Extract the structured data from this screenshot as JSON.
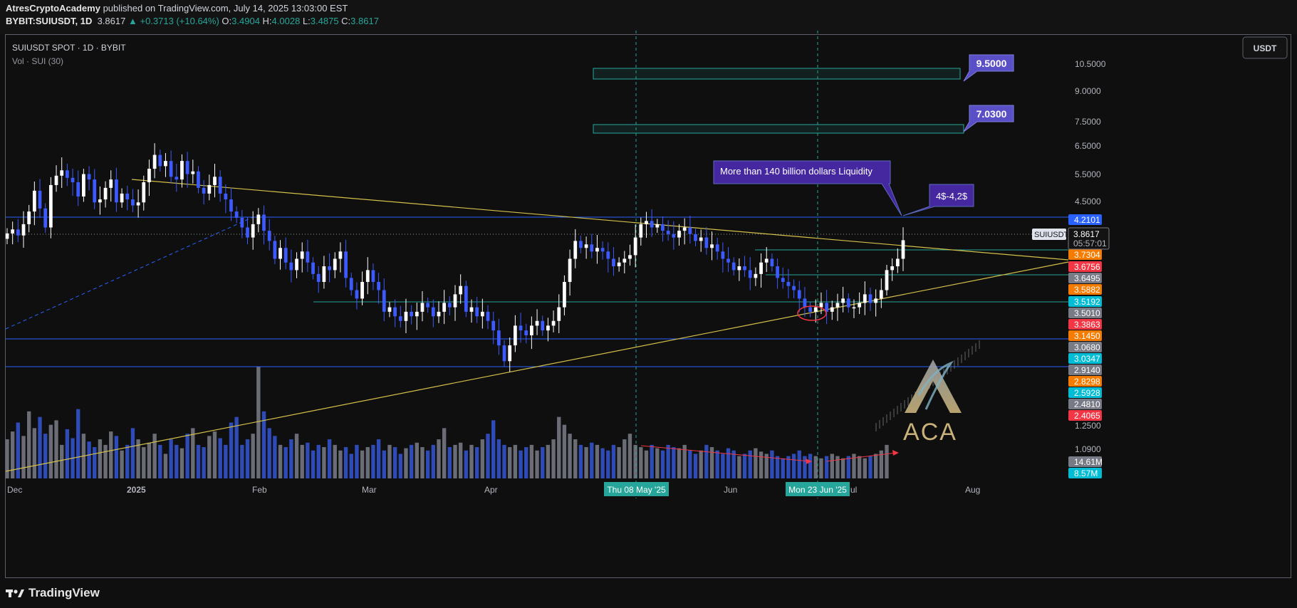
{
  "header": {
    "author": "AtresCryptoAcademy",
    "published": "published on TradingView.com, July 14, 2025 13:03:00 EST",
    "symbol_line": "BYBIT:SUIUSDT, 1D",
    "price": "3.8617",
    "change": "+0.3713 (+10.64%)",
    "o_label": "O:",
    "o": "3.4904",
    "h_label": "H:",
    "h": "4.0028",
    "l_label": "L:",
    "l": "3.4875",
    "c_label": "C:",
    "c": "3.8617"
  },
  "chart_info": {
    "title": "SUIUSDT SPOT · 1D · BYBIT",
    "vol_label": "Vol · SUI (30)",
    "currency_button": "USDT"
  },
  "footer": {
    "brand": "TradingView"
  },
  "colors": {
    "bg": "#0f0f0f",
    "up": "#ffffff",
    "down": "#3d5afe",
    "trendline": "#d4c04a",
    "zone": "#26a69a",
    "callout": "#4527a0",
    "level": "#2962ff"
  },
  "chart_data": {
    "type": "candlestick",
    "symbol": "SUIUSDT",
    "timeframe": "1D",
    "y_scale": "log",
    "price_axis_ticks": [
      "10.5000",
      "9.0000",
      "7.5000",
      "6.5000",
      "5.5000",
      "4.5000",
      "1.2500",
      "1.0900"
    ],
    "price_axis_badges": [
      {
        "value": "4.2101",
        "color": "#2962ff"
      },
      {
        "value": "3.7304",
        "color": "#f57c00"
      },
      {
        "value": "3.6756",
        "color": "#f23645"
      },
      {
        "value": "3.6495",
        "color": "#787b86"
      },
      {
        "value": "3.5882",
        "color": "#f57c00"
      },
      {
        "value": "3.5192",
        "color": "#00bcd4"
      },
      {
        "value": "3.5010",
        "color": "#787b86"
      },
      {
        "value": "3.3863",
        "color": "#f23645"
      },
      {
        "value": "3.1450",
        "color": "#f57c00"
      },
      {
        "value": "3.0680",
        "color": "#787b86"
      },
      {
        "value": "3.0347",
        "color": "#00bcd4"
      },
      {
        "value": "2.9140",
        "color": "#787b86"
      },
      {
        "value": "2.8298",
        "color": "#f57c00"
      },
      {
        "value": "2.5928",
        "color": "#00bcd4"
      },
      {
        "value": "2.4810",
        "color": "#787b86"
      },
      {
        "value": "2.4065",
        "color": "#f23645"
      },
      {
        "value": "14.61M",
        "color": "#787b86"
      },
      {
        "value": "8.57M",
        "color": "#00bcd4"
      }
    ],
    "last_price": {
      "symbol": "SUIUSDT",
      "price": "3.8617",
      "countdown": "05:57:01"
    },
    "x_axis_labels": [
      "Dec",
      "2025",
      "Feb",
      "Mar",
      "Apr",
      "Jun",
      "Jul",
      "Aug"
    ],
    "x_axis_highlights": [
      "Thu 08 May '25",
      "Mon 23 Jun '25"
    ],
    "price_points": [
      3.96,
      4.02,
      3.93,
      4.1,
      4.3,
      4.65,
      4.35,
      4.05,
      4.75,
      4.92,
      5.02,
      4.88,
      4.8,
      4.55,
      4.95,
      4.85,
      4.45,
      4.5,
      4.7,
      4.85,
      4.45,
      4.6,
      4.5,
      4.4,
      4.45,
      4.8,
      5.05,
      5.32,
      5.1,
      5.2,
      4.9,
      4.85,
      5.2,
      4.95,
      5.0,
      4.7,
      4.6,
      4.75,
      4.9,
      4.6,
      4.5,
      4.3,
      4.2,
      4.05,
      3.9,
      4.1,
      4.25,
      4.0,
      3.85,
      3.6,
      3.75,
      3.55,
      3.45,
      3.6,
      3.7,
      3.55,
      3.4,
      3.3,
      3.5,
      3.45,
      3.6,
      3.7,
      3.35,
      3.2,
      3.1,
      3.3,
      3.45,
      3.3,
      3.2,
      2.95,
      3.0,
      2.9,
      2.85,
      2.95,
      2.9,
      2.95,
      3.05,
      3.0,
      2.9,
      2.95,
      3.05,
      3.0,
      3.15,
      3.25,
      2.95,
      3.0,
      2.9,
      2.95,
      2.85,
      2.75,
      2.6,
      2.45,
      2.6,
      2.8,
      2.75,
      2.7,
      2.8,
      2.85,
      2.75,
      2.8,
      2.85,
      3.0,
      3.3,
      3.6,
      3.85,
      3.75,
      3.8,
      3.7,
      3.75,
      3.7,
      3.6,
      3.5,
      3.55,
      3.6,
      3.65,
      3.9,
      4.1,
      4.15,
      4.05,
      4.1,
      4.0,
      3.95,
      3.9,
      4.0,
      4.05,
      3.95,
      3.85,
      3.9,
      3.75,
      3.8,
      3.7,
      3.6,
      3.55,
      3.45,
      3.5,
      3.45,
      3.35,
      3.4,
      3.55,
      3.6,
      3.5,
      3.35,
      3.3,
      3.25,
      3.2,
      3.1,
      3.0,
      2.95,
      3.0,
      3.05,
      2.95,
      3.0,
      3.05,
      3.1,
      3.0,
      3.0,
      3.05,
      3.15,
      3.05,
      3.1,
      3.2,
      3.45,
      3.5,
      3.6,
      3.86
    ],
    "volume_points": [
      0.35,
      0.42,
      0.5,
      0.38,
      0.6,
      0.45,
      0.55,
      0.4,
      0.48,
      0.52,
      0.3,
      0.44,
      0.36,
      0.62,
      0.4,
      0.33,
      0.28,
      0.35,
      0.3,
      0.42,
      0.38,
      0.25,
      0.3,
      0.45,
      0.35,
      0.28,
      0.32,
      0.4,
      0.3,
      0.22,
      0.35,
      0.3,
      0.27,
      0.4,
      0.45,
      0.3,
      0.28,
      0.38,
      0.42,
      0.36,
      0.3,
      0.5,
      0.55,
      0.3,
      0.35,
      0.4,
      1.0,
      0.6,
      0.45,
      0.38,
      0.3,
      0.28,
      0.35,
      0.4,
      0.3,
      0.32,
      0.25,
      0.3,
      0.28,
      0.35,
      0.3,
      0.25,
      0.28,
      0.22,
      0.3,
      0.25,
      0.28,
      0.3,
      0.35,
      0.25,
      0.3,
      0.28,
      0.22,
      0.27,
      0.3,
      0.32,
      0.28,
      0.25,
      0.3,
      0.35,
      0.45,
      0.28,
      0.3,
      0.32,
      0.25,
      0.3,
      0.28,
      0.35,
      0.4,
      0.52,
      0.35,
      0.3,
      0.28,
      0.3,
      0.25,
      0.28,
      0.3,
      0.25,
      0.28,
      0.3,
      0.35,
      0.55,
      0.48,
      0.4,
      0.35,
      0.3,
      0.28,
      0.32,
      0.3,
      0.27,
      0.25,
      0.3,
      0.28,
      0.35,
      0.4,
      0.3,
      0.28,
      0.25,
      0.3,
      0.27,
      0.25,
      0.3,
      0.28,
      0.27,
      0.3,
      0.25,
      0.22,
      0.25,
      0.3,
      0.28,
      0.25,
      0.22,
      0.27,
      0.25,
      0.2,
      0.22,
      0.25,
      0.27,
      0.24,
      0.22,
      0.25,
      0.2,
      0.18,
      0.2,
      0.22,
      0.25,
      0.2,
      0.22,
      0.2,
      0.18,
      0.2,
      0.22,
      0.2,
      0.18,
      0.2,
      0.22,
      0.2,
      0.18,
      0.2,
      0.22,
      0.25,
      0.3
    ],
    "horizontal_levels": [
      4.2101,
      3.7304,
      3.6495,
      3.5192,
      3.068,
      2.8298
    ],
    "target_zones": [
      {
        "label": "9.5000",
        "low": 9.5,
        "high": 10.2
      },
      {
        "label": "7.0300",
        "low": 7.03,
        "high": 7.3
      }
    ],
    "annotations": [
      {
        "text": "More than 140 billion dollars Liquidity"
      },
      {
        "text": "4$-4,2$"
      },
      {
        "text": "9.5000"
      },
      {
        "text": "7.0300"
      }
    ],
    "watermark": "ACA"
  }
}
